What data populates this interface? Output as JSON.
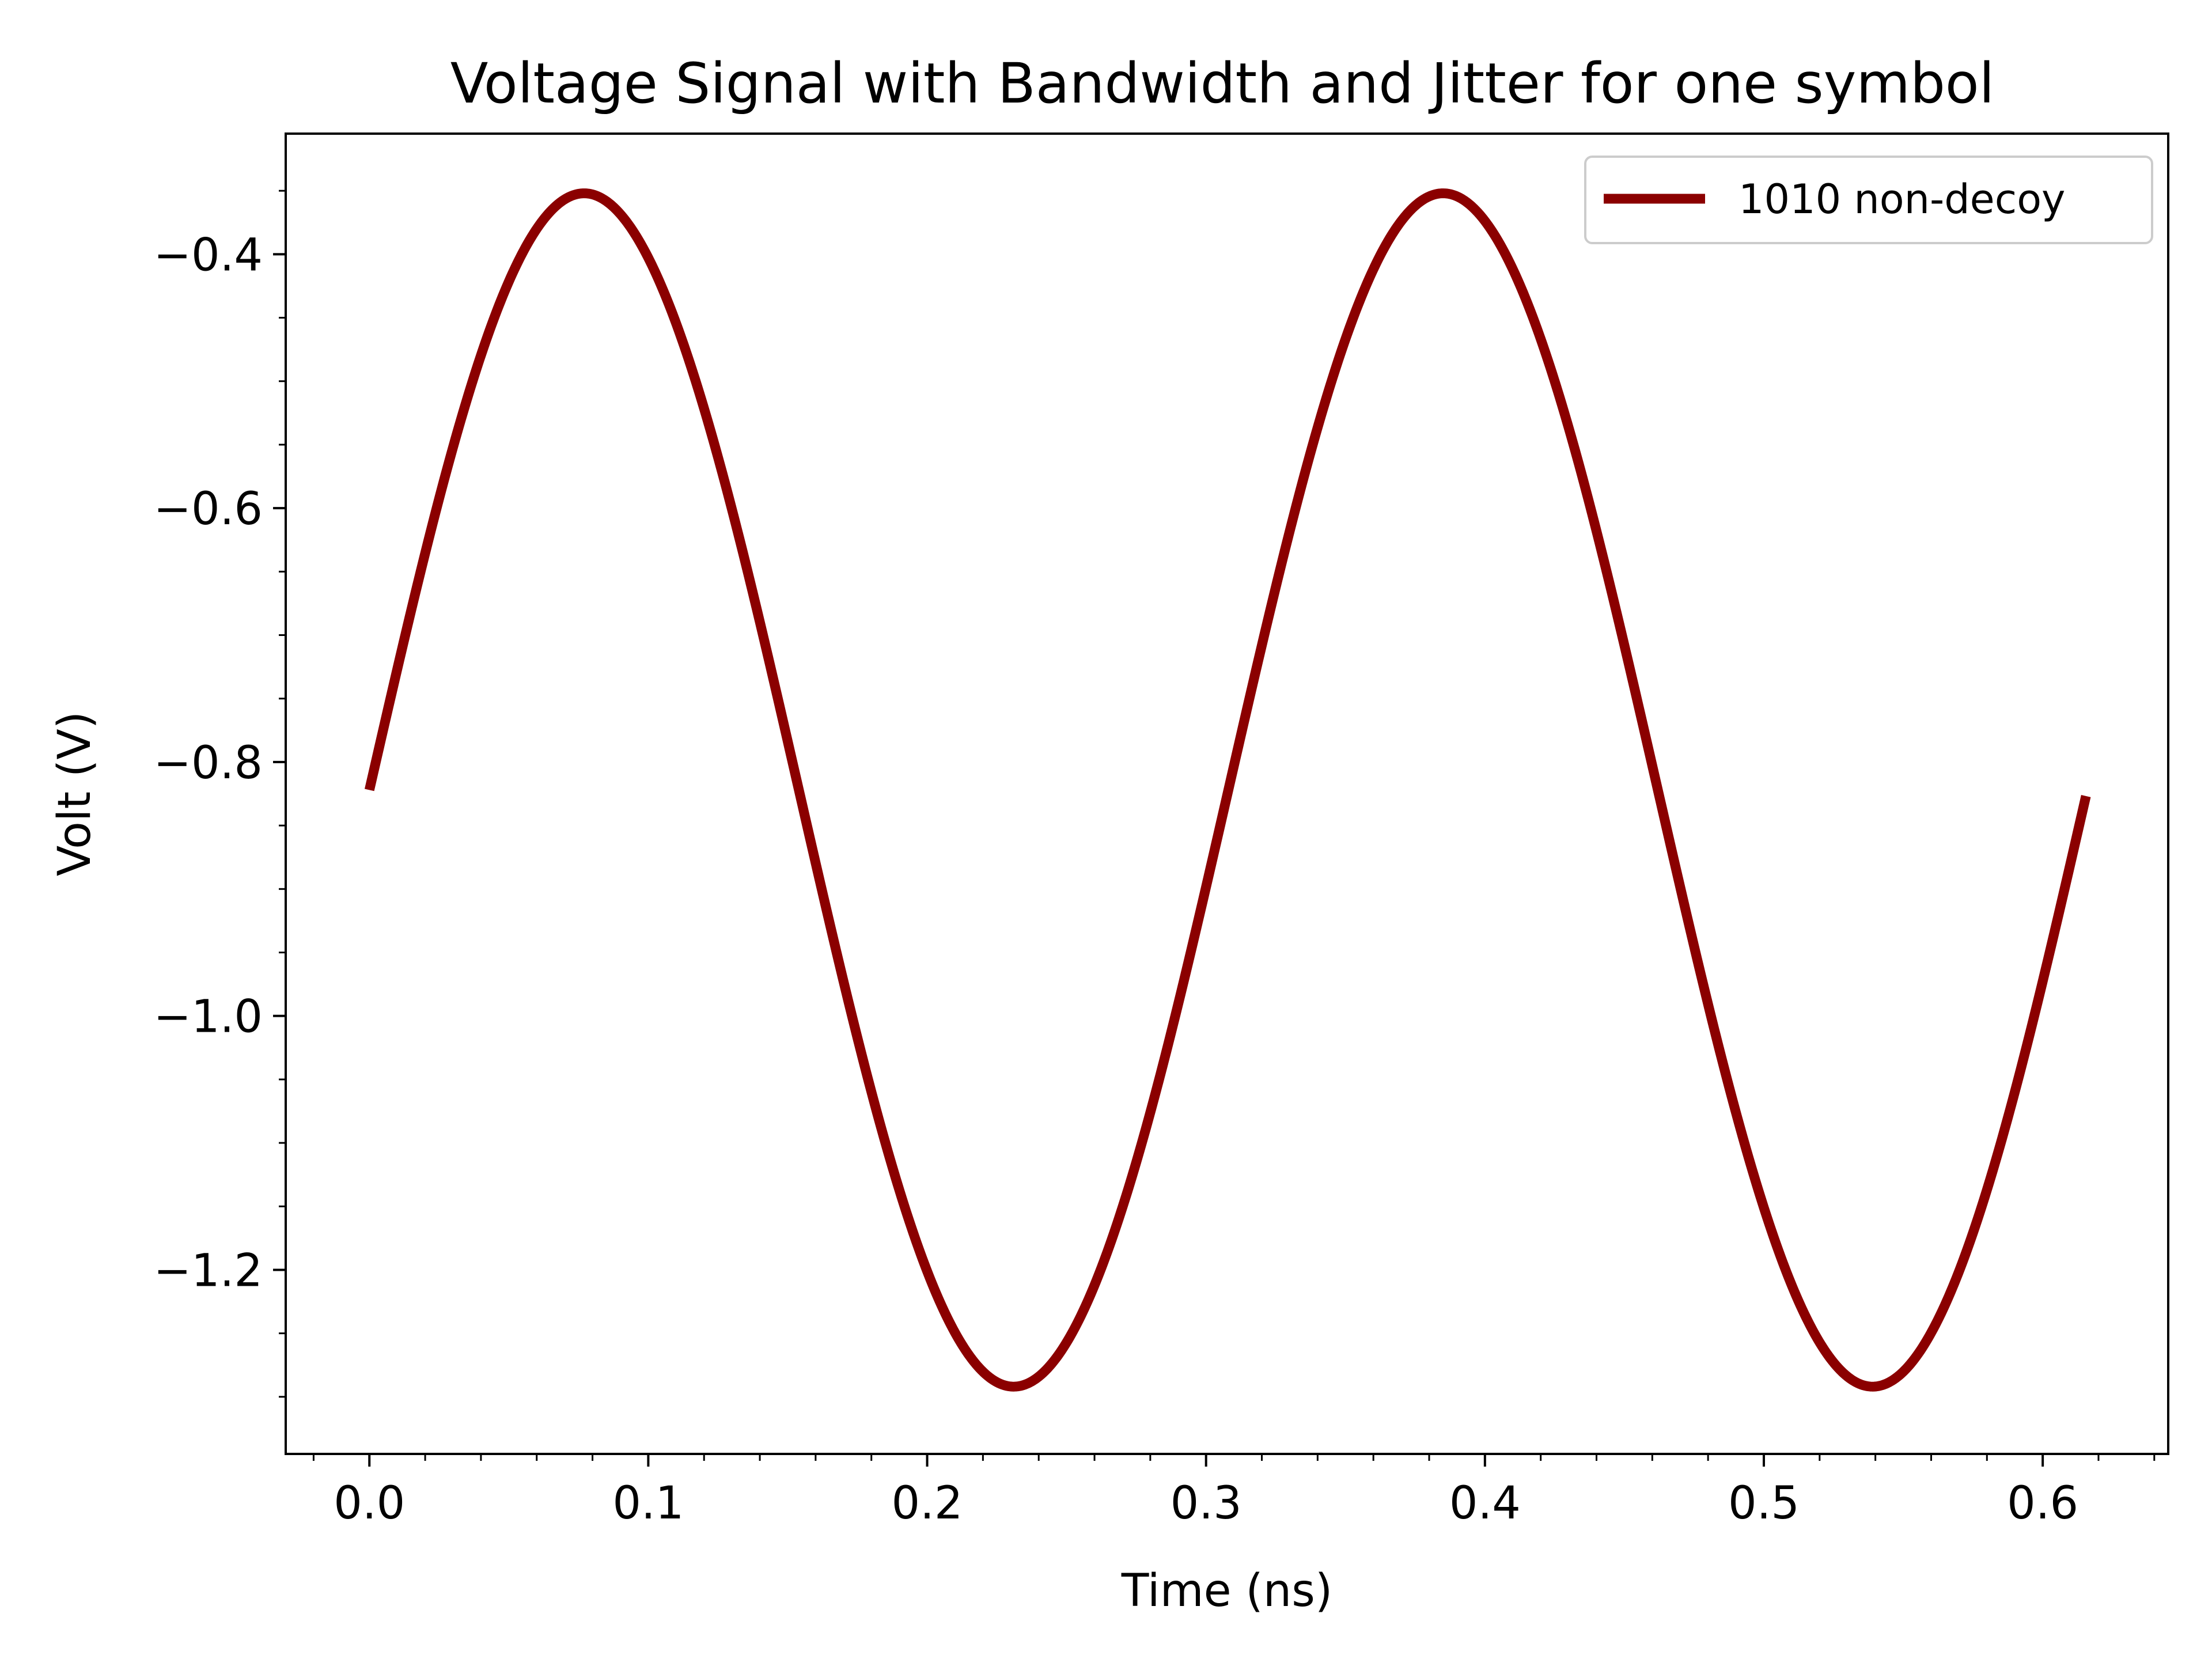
{
  "chart_data": {
    "type": "line",
    "title": "Voltage Signal with Bandwidth and Jitter for one symbol",
    "xlabel": "Time (ns)",
    "ylabel": "Volt (V)",
    "xlim": [
      -0.03,
      0.645
    ],
    "ylim": [
      -1.345,
      -0.305
    ],
    "x_ticks": [
      0.0,
      0.1,
      0.2,
      0.3,
      0.4,
      0.5,
      0.6
    ],
    "x_tick_labels": [
      "0.0",
      "0.1",
      "0.2",
      "0.3",
      "0.4",
      "0.5",
      "0.6"
    ],
    "y_ticks": [
      -0.4,
      -0.6,
      -0.8,
      -1.0,
      -1.2
    ],
    "y_tick_labels": [
      "−0.4",
      "−0.6",
      "−0.8",
      "−1.0",
      "−1.2"
    ],
    "x_minor_step": 0.02,
    "y_minor_step": 0.05,
    "grid": false,
    "legend_position": "top-right",
    "series": [
      {
        "name": "1010 non-decoy",
        "color": "#8b0000",
        "signal": {
          "kind": "sine",
          "offset": -0.822,
          "amplitude": 0.47,
          "period_ns": 0.308,
          "x_start": 0.0,
          "x_end": 0.6155
        },
        "x": [
          0.0,
          0.077,
          0.154,
          0.231,
          0.308,
          0.385,
          0.462,
          0.539,
          0.6155
        ],
        "y": [
          -0.822,
          -0.352,
          -0.822,
          -1.292,
          -0.822,
          -0.352,
          -0.822,
          -1.292,
          -0.822
        ]
      }
    ]
  }
}
